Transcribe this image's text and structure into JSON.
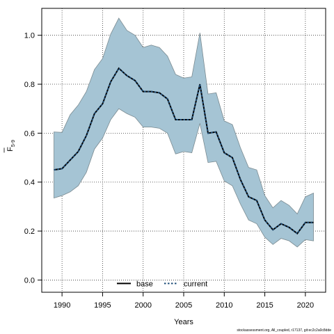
{
  "chart_data": {
    "type": "line",
    "xlabel": "Years",
    "ylabel": "F",
    "ylabel_subscript": "5-9",
    "xlim": [
      1987.5,
      2022.5
    ],
    "ylim": [
      -0.05,
      1.11
    ],
    "x_ticks": [
      1990,
      1995,
      2000,
      2005,
      2010,
      2015,
      2020
    ],
    "y_ticks": [
      0.0,
      0.2,
      0.4,
      0.6,
      0.8,
      1.0
    ],
    "y_tick_labels": [
      "0.0",
      "0.2",
      "0.4",
      "0.6",
      "0.8",
      "1.0"
    ],
    "grid": true,
    "legend_position": "bottom",
    "x": [
      1989,
      1990,
      1991,
      1992,
      1993,
      1994,
      1995,
      1996,
      1997,
      1998,
      1999,
      2000,
      2001,
      2002,
      2003,
      2004,
      2005,
      2006,
      2007,
      2008,
      2009,
      2010,
      2011,
      2012,
      2013,
      2014,
      2015,
      2016,
      2017,
      2018,
      2019,
      2020,
      2021
    ],
    "band": {
      "upper": [
        0.605,
        0.603,
        0.675,
        0.715,
        0.77,
        0.86,
        0.905,
        1.005,
        1.07,
        1.02,
        1.0,
        0.95,
        0.96,
        0.95,
        0.915,
        0.84,
        0.825,
        0.83,
        1.01,
        0.76,
        0.765,
        0.65,
        0.635,
        0.54,
        0.46,
        0.45,
        0.345,
        0.295,
        0.325,
        0.305,
        0.27,
        0.34,
        0.355
      ],
      "lower": [
        0.335,
        0.345,
        0.36,
        0.385,
        0.44,
        0.535,
        0.58,
        0.655,
        0.7,
        0.68,
        0.665,
        0.625,
        0.625,
        0.62,
        0.6,
        0.515,
        0.525,
        0.52,
        0.64,
        0.48,
        0.485,
        0.405,
        0.385,
        0.31,
        0.245,
        0.23,
        0.175,
        0.145,
        0.17,
        0.16,
        0.135,
        0.165,
        0.16
      ],
      "color": "#a5c4d4",
      "edge_color": "#7a8a90"
    },
    "series": [
      {
        "name": "base",
        "values": [
          0.45,
          0.455,
          0.49,
          0.525,
          0.59,
          0.68,
          0.72,
          0.81,
          0.865,
          0.835,
          0.815,
          0.77,
          0.77,
          0.765,
          0.74,
          0.655,
          0.655,
          0.655,
          0.8,
          0.6,
          0.605,
          0.52,
          0.5,
          0.41,
          0.34,
          0.325,
          0.245,
          0.205,
          0.23,
          0.215,
          0.19,
          0.235,
          0.235
        ],
        "color": "#000000",
        "style": "solid"
      },
      {
        "name": "current",
        "values": [
          0.45,
          0.455,
          0.49,
          0.525,
          0.59,
          0.68,
          0.72,
          0.81,
          0.865,
          0.835,
          0.815,
          0.77,
          0.77,
          0.765,
          0.74,
          0.655,
          0.655,
          0.655,
          0.8,
          0.6,
          0.605,
          0.52,
          0.5,
          0.41,
          0.34,
          0.325,
          0.245,
          0.205,
          0.23,
          0.215,
          0.19,
          0.235,
          0.235
        ],
        "color": "#1f4e79",
        "style": "dotted"
      }
    ]
  },
  "footer": "stockassessment.org, All_coupled, r17137, git:ec2c2a0c8dde"
}
